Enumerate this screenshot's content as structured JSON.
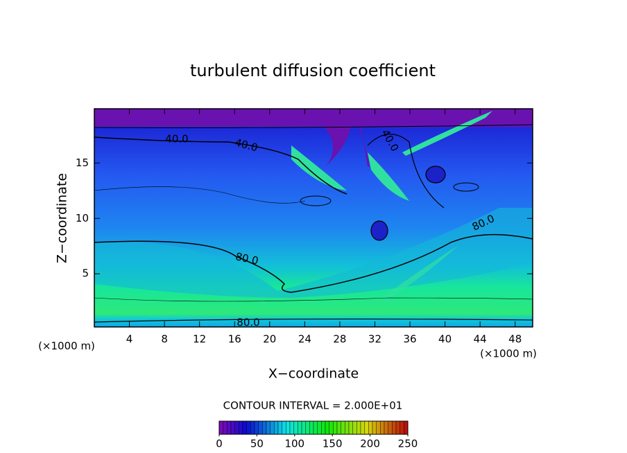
{
  "chart_data": {
    "type": "contour",
    "title": "turbulent diffusion coefficient",
    "x_label": "X−coordinate",
    "y_label": "Z−coordinate",
    "x_unit_label": "(×1000 m)",
    "y_unit_label": "(×1000 m)",
    "xlim": [
      0,
      50
    ],
    "xticks": [
      4,
      8,
      12,
      16,
      20,
      24,
      28,
      32,
      36,
      40,
      44,
      48
    ],
    "ylim": [
      0.2,
      19.9
    ],
    "yticks": [
      5,
      10,
      15
    ],
    "contour_labels": [
      {
        "value": 40,
        "label": "40.0"
      },
      {
        "value": 40,
        "label": "40.0"
      },
      {
        "value": 40,
        "label": "40.0"
      },
      {
        "value": 80,
        "label": "80.0"
      },
      {
        "value": 80,
        "label": "80.0"
      },
      {
        "value": 80,
        "label": "80.0"
      }
    ],
    "contour_interval_label": "CONTOUR INTERVAL = 2.000E+01",
    "colorbar": {
      "lim": [
        0,
        250
      ],
      "ticks": [
        0,
        50,
        100,
        150,
        200,
        250
      ]
    }
  }
}
